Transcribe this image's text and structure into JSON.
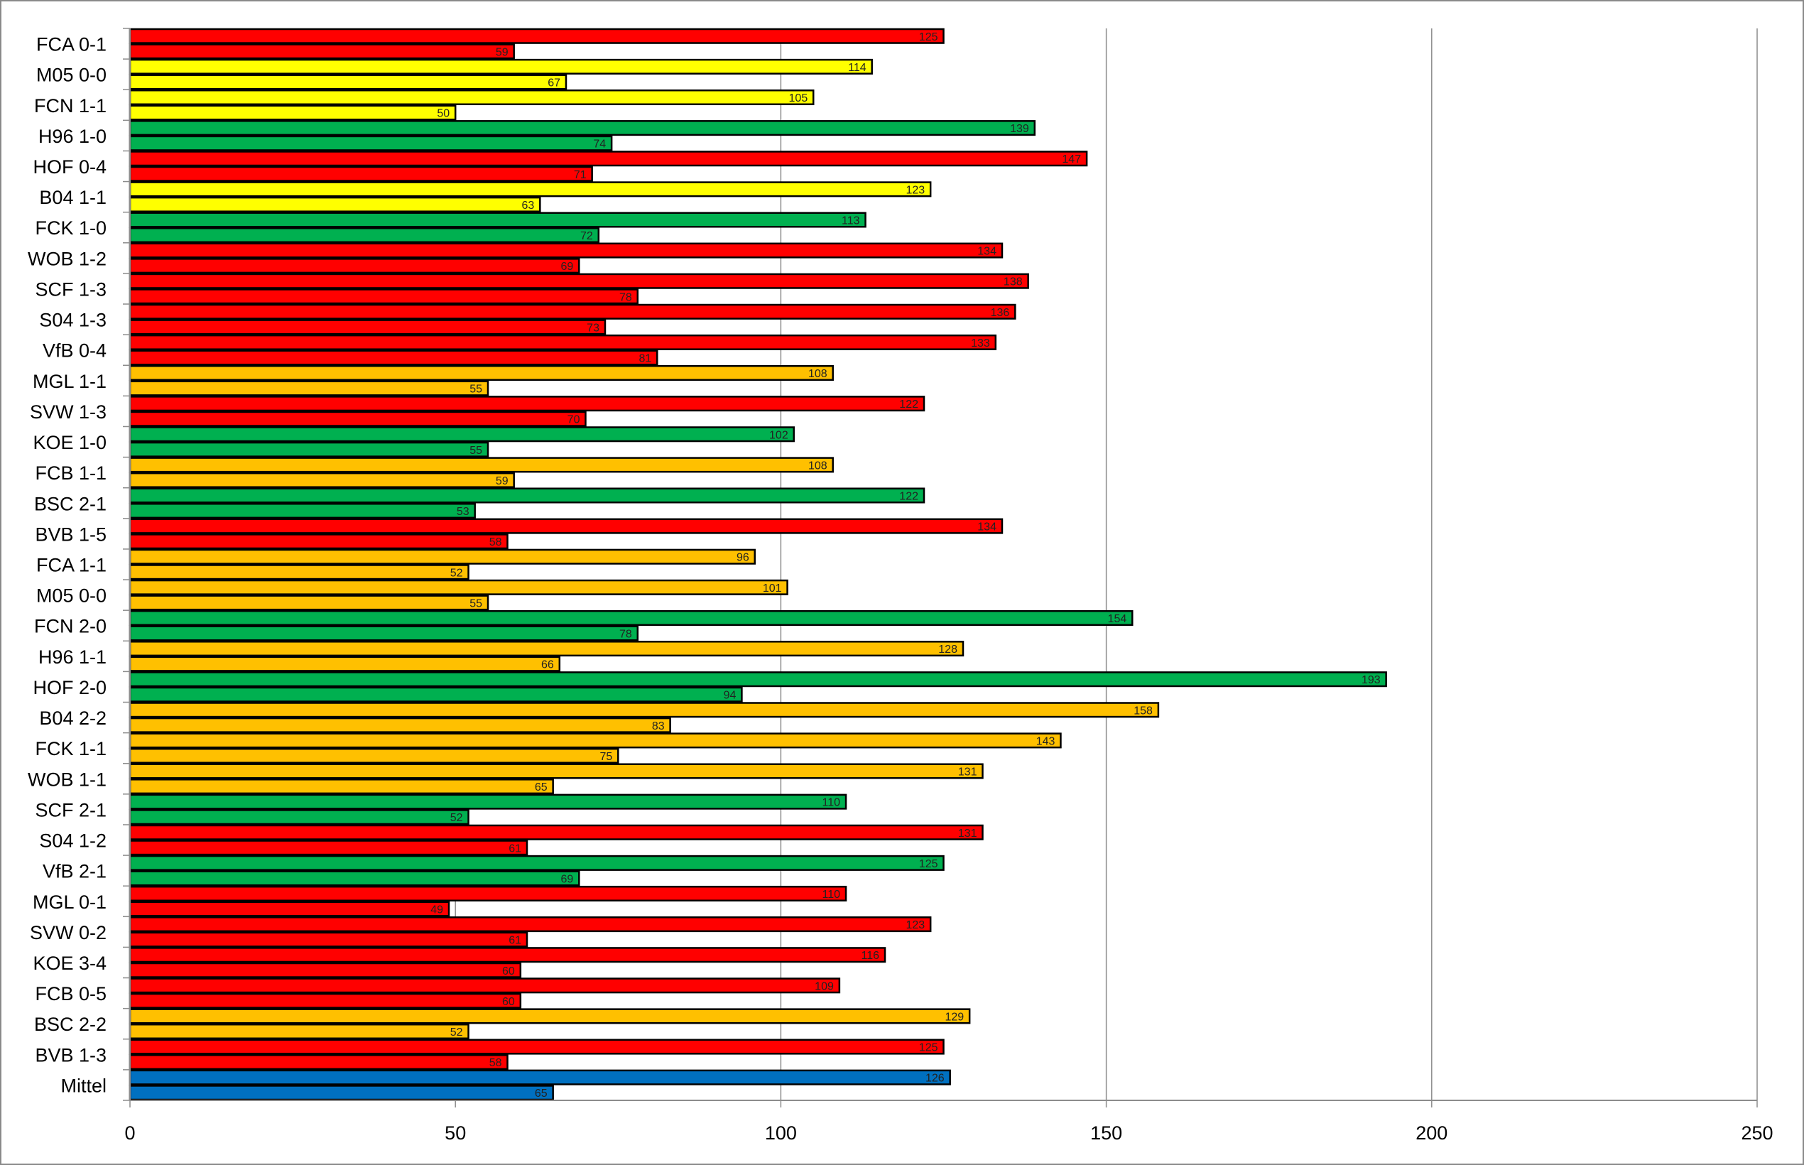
{
  "chart_data": {
    "type": "bar",
    "orientation": "horizontal",
    "categories": [
      "FCA 0-1",
      "M05 0-0",
      "FCN 1-1",
      "H96 1-0",
      "HOF 0-4",
      "B04 1-1",
      "FCK 1-0",
      "WOB 1-2",
      "SCF 1-3",
      "S04 1-3",
      "VfB 0-4",
      "MGL 1-1",
      "SVW 1-3",
      "KOE 1-0",
      "FCB 1-1",
      "BSC 2-1",
      "BVB 1-5",
      "FCA 1-1",
      "M05 0-0",
      "FCN 2-0",
      "H96 1-1",
      "HOF 2-0",
      "B04 2-2",
      "FCK 1-1",
      "WOB 1-1",
      "SCF 2-1",
      "S04 1-2",
      "VfB 2-1",
      "MGL 0-1",
      "SVW 0-2",
      "KOE 3-4",
      "FCB 0-5",
      "BSC 2-2",
      "BVB 1-3",
      "Mittel"
    ],
    "series": [
      {
        "values": [
          125,
          114,
          105,
          139,
          147,
          123,
          113,
          134,
          138,
          136,
          133,
          108,
          122,
          102,
          108,
          122,
          134,
          96,
          101,
          154,
          128,
          193,
          158,
          143,
          131,
          110,
          131,
          125,
          110,
          123,
          116,
          109,
          129,
          125,
          126
        ]
      },
      {
        "values": [
          59,
          67,
          50,
          74,
          71,
          63,
          72,
          69,
          78,
          73,
          81,
          55,
          70,
          55,
          59,
          53,
          58,
          52,
          55,
          78,
          66,
          94,
          83,
          75,
          65,
          52,
          61,
          69,
          49,
          61,
          60,
          60,
          52,
          58,
          65
        ]
      }
    ],
    "bar_colors": [
      "red",
      "yellow",
      "yellow",
      "green",
      "red",
      "yellow",
      "green",
      "red",
      "red",
      "red",
      "red",
      "orange",
      "red",
      "green",
      "orange",
      "green",
      "red",
      "orange",
      "orange",
      "green",
      "orange",
      "green",
      "orange",
      "orange",
      "orange",
      "green",
      "red",
      "green",
      "red",
      "red",
      "red",
      "red",
      "orange",
      "red",
      "blue"
    ],
    "palette": {
      "red": "#FF0000",
      "yellow": "#FFFF00",
      "green": "#00B050",
      "orange": "#FFC000",
      "blue": "#0070C0"
    },
    "xlim": [
      0,
      250
    ],
    "xticks": [
      "0",
      "50",
      "100",
      "150",
      "200",
      "250"
    ],
    "grid": "vertical",
    "legend": "none",
    "title": "",
    "xlabel": "",
    "ylabel": ""
  }
}
